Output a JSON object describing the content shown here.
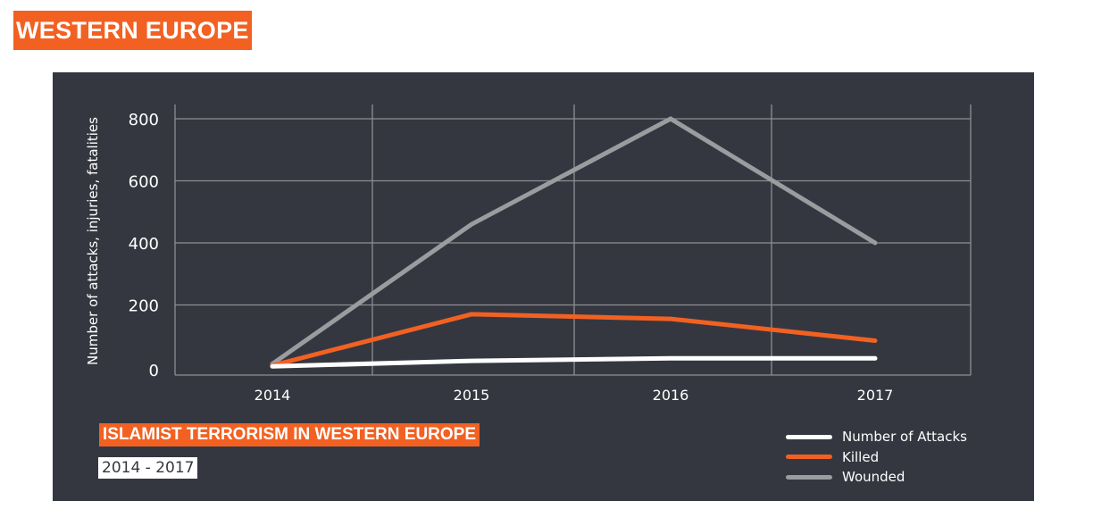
{
  "page": {
    "title": "WESTERN EUROPE"
  },
  "colors": {
    "accent": "#f26122",
    "panel_bg": "#353740",
    "grid": "#8d8e93",
    "attacks": "#ffffff",
    "killed": "#f26122",
    "wounded": "#9b9c9f"
  },
  "chart": {
    "title": "ISLAMIST TERRORISM IN WESTERN EUROPE",
    "subtitle": "2014 - 2017",
    "ylabel": "Number of attacks, injuries, fatalities",
    "yticks": [
      "0",
      "200",
      "400",
      "600",
      "800"
    ],
    "xticks": [
      "2014",
      "2015",
      "2016",
      "2017"
    ],
    "legend": [
      {
        "label": "Number of Attacks"
      },
      {
        "label": "Killed"
      },
      {
        "label": "Wounded"
      }
    ]
  },
  "chart_data": {
    "type": "line",
    "title": "ISLAMIST TERRORISM IN WESTERN EUROPE",
    "subtitle": "2014 - 2017",
    "xlabel": "",
    "ylabel": "Number of attacks, injuries, fatalities",
    "categories": [
      "2014",
      "2015",
      "2016",
      "2017"
    ],
    "series": [
      {
        "name": "Number of Attacks",
        "color": "#ffffff",
        "values": [
          2,
          20,
          28,
          28
        ]
      },
      {
        "name": "Killed",
        "color": "#f26122",
        "values": [
          5,
          170,
          155,
          85
        ]
      },
      {
        "name": "Wounded",
        "color": "#9b9c9f",
        "values": [
          10,
          460,
          800,
          400
        ]
      }
    ],
    "ylim": [
      0,
      800
    ],
    "yticks": [
      0,
      200,
      400,
      600,
      800
    ],
    "grid": true,
    "legend_position": "bottom-right"
  }
}
